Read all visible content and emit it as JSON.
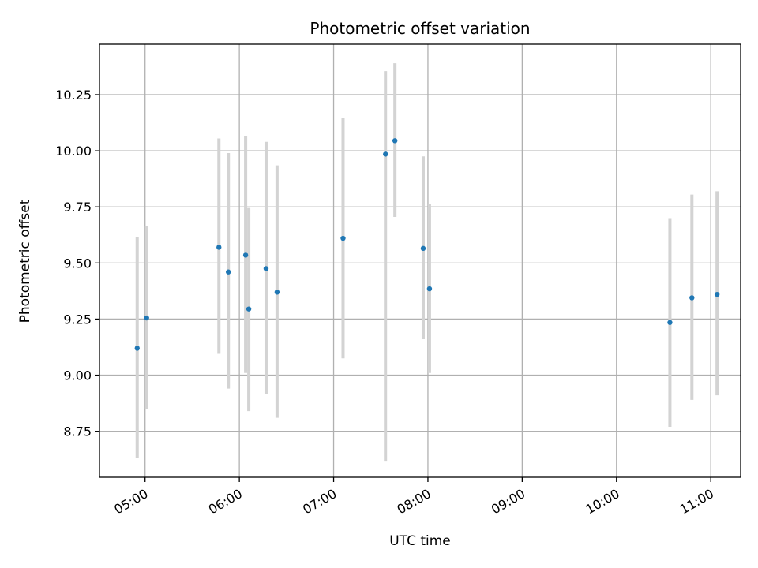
{
  "chart_data": {
    "type": "scatter",
    "title": "Photometric offset variation",
    "xlabel": "UTC time",
    "ylabel": "Photometric offset",
    "xlim": [
      "04:31",
      "11:19"
    ],
    "ylim": [
      8.545,
      10.475
    ],
    "grid": true,
    "x_ticks": [
      "05:00",
      "06:00",
      "07:00",
      "08:00",
      "09:00",
      "10:00",
      "11:00"
    ],
    "y_ticks": [
      "8.75",
      "9.00",
      "9.25",
      "9.50",
      "9.75",
      "10.00",
      "10.25"
    ],
    "colors": {
      "point": "#1f77b4",
      "errorbar": "#d3d3d3",
      "grid": "#b0b0b0"
    },
    "series": [
      {
        "x": [
          "04:55",
          "05:01",
          "05:47",
          "05:53",
          "06:04",
          "06:06",
          "06:17",
          "06:24",
          "07:06",
          "07:33",
          "07:39",
          "07:57",
          "08:01",
          "10:34",
          "10:48",
          "11:04"
        ],
        "y": [
          9.12,
          9.255,
          9.57,
          9.46,
          9.535,
          9.295,
          9.475,
          9.37,
          9.61,
          9.985,
          10.045,
          9.565,
          9.385,
          9.235,
          9.345,
          9.36
        ],
        "y_low": [
          8.63,
          8.85,
          9.095,
          8.94,
          9.01,
          8.84,
          8.915,
          8.81,
          9.075,
          8.615,
          9.705,
          9.16,
          9.01,
          8.77,
          8.89,
          8.91
        ],
        "y_high": [
          9.615,
          9.665,
          10.055,
          9.99,
          10.065,
          9.745,
          10.04,
          9.935,
          10.145,
          10.355,
          10.39,
          9.975,
          9.765,
          9.7,
          9.805,
          9.82
        ]
      }
    ]
  }
}
